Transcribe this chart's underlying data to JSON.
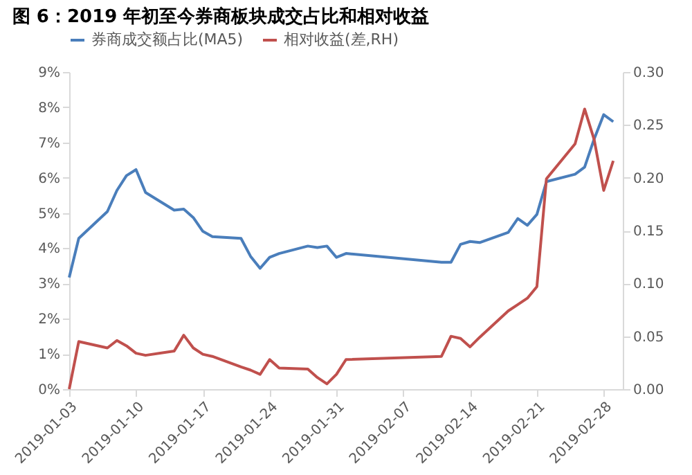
{
  "chart_data": {
    "type": "line",
    "title": "图 6：2019 年初至今券商板块成交占比和相对收益",
    "x": [
      "2019-01-03",
      "2019-01-04",
      "2019-01-07",
      "2019-01-08",
      "2019-01-09",
      "2019-01-10",
      "2019-01-11",
      "2019-01-14",
      "2019-01-15",
      "2019-01-16",
      "2019-01-17",
      "2019-01-18",
      "2019-01-21",
      "2019-01-22",
      "2019-01-23",
      "2019-01-24",
      "2019-01-25",
      "2019-01-28",
      "2019-01-29",
      "2019-01-30",
      "2019-01-31",
      "2019-02-01",
      "2019-02-11",
      "2019-02-12",
      "2019-02-13",
      "2019-02-14",
      "2019-02-15",
      "2019-02-18",
      "2019-02-19",
      "2019-02-20",
      "2019-02-21",
      "2019-02-22",
      "2019-02-25",
      "2019-02-26",
      "2019-02-27",
      "2019-02-28",
      "2019-03-01"
    ],
    "series": [
      {
        "name": "券商成交额占比(MA5)",
        "color": "#4a7ebb",
        "values": [
          3.17,
          4.28,
          5.04,
          5.64,
          6.06,
          6.23,
          5.58,
          5.08,
          5.11,
          4.87,
          4.48,
          4.33,
          4.28,
          3.77,
          3.43,
          3.74,
          3.85,
          4.06,
          4.02,
          4.06,
          3.74,
          3.85,
          3.6,
          3.6,
          4.11,
          4.19,
          4.16,
          4.45,
          4.84,
          4.65,
          4.96,
          5.89,
          6.1,
          6.3,
          7.1,
          7.79,
          7.59
        ]
      },
      {
        "name": "相对收益(差,RH)",
        "color": "#c0504d",
        "axis": "y2",
        "values": [
          0,
          0.045,
          0.039,
          0.046,
          0.041,
          0.034,
          0.032,
          0.036,
          0.051,
          0.039,
          0.033,
          0.031,
          0.021,
          0.018,
          0.014,
          0.028,
          0.02,
          0.019,
          0.011,
          0.005,
          0.014,
          0.028,
          0.031,
          0.05,
          0.048,
          0.04,
          0.049,
          0.074,
          0.08,
          0.086,
          0.097,
          0.199,
          0.232,
          0.265,
          0.236,
          0.188,
          0.216
        ]
      }
    ],
    "xlim": [
      "2019-01-03",
      "2019-03-02"
    ],
    "xticks": [
      "2019-01-03",
      "2019-01-10",
      "2019-01-17",
      "2019-01-24",
      "2019-01-31",
      "2019-02-07",
      "2019-02-14",
      "2019-02-21",
      "2019-02-28"
    ],
    "ylim": [
      0,
      9
    ],
    "yticks": [
      {
        "value": 0,
        "label": "0%"
      },
      {
        "value": 1,
        "label": "1%"
      },
      {
        "value": 2,
        "label": "2%"
      },
      {
        "value": 3,
        "label": "3%"
      },
      {
        "value": 4,
        "label": "4%"
      },
      {
        "value": 5,
        "label": "5%"
      },
      {
        "value": 6,
        "label": "6%"
      },
      {
        "value": 7,
        "label": "7%"
      },
      {
        "value": 8,
        "label": "8%"
      },
      {
        "value": 9,
        "label": "9%"
      }
    ],
    "y2lim": [
      0,
      0.3
    ],
    "y2ticks": [
      {
        "value": 0,
        "label": "0.00"
      },
      {
        "value": 0.05,
        "label": "0.05"
      },
      {
        "value": 0.1,
        "label": "0.10"
      },
      {
        "value": 0.15,
        "label": "0.15"
      },
      {
        "value": 0.2,
        "label": "0.20"
      },
      {
        "value": 0.25,
        "label": "0.25"
      },
      {
        "value": 0.3,
        "label": "0.30"
      }
    ],
    "grid": false,
    "legend": "top",
    "marker": "none",
    "line_style": "solid"
  }
}
